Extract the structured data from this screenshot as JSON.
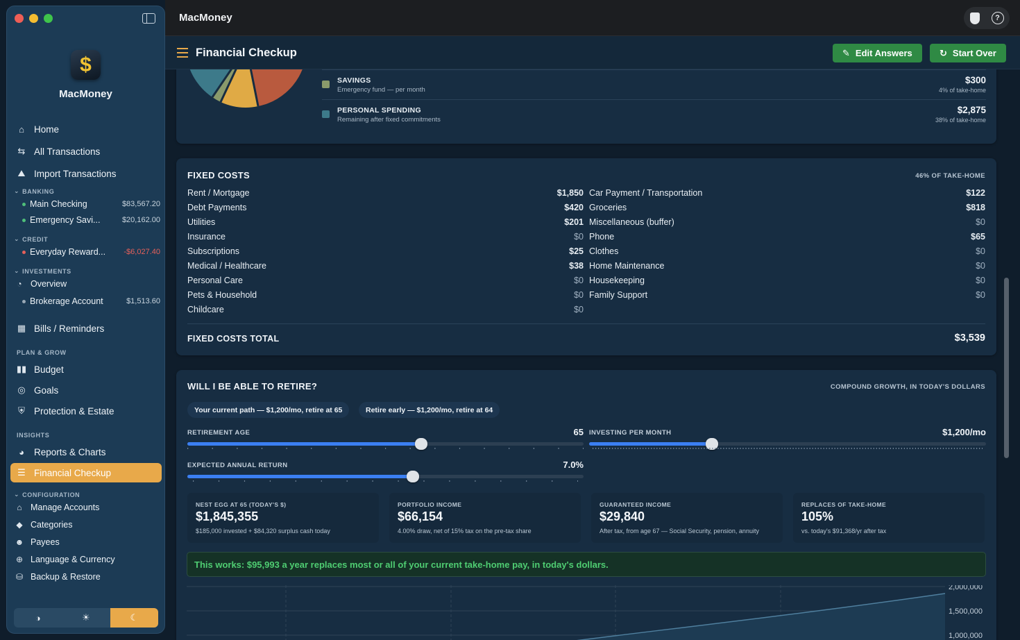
{
  "app": {
    "name": "MacMoney",
    "window_title": "MacMoney"
  },
  "sidebar": {
    "nav_top": [
      {
        "label": "Home",
        "icon": "house-icon"
      },
      {
        "label": "All Transactions",
        "icon": "arrows-swap-icon"
      },
      {
        "label": "Import Transactions",
        "icon": "tray-import-icon"
      }
    ],
    "banking": {
      "label": "BANKING",
      "accounts": [
        {
          "name": "Main Checking",
          "balance": "$83,567.20"
        },
        {
          "name": "Emergency Savi...",
          "balance": "$20,162.00"
        }
      ]
    },
    "credit": {
      "label": "CREDIT",
      "accounts": [
        {
          "name": "Everyday Reward...",
          "balance": "-$6,027.40"
        }
      ]
    },
    "investments": {
      "label": "INVESTMENTS",
      "overview": "Overview",
      "accounts": [
        {
          "name": "Brokerage Account",
          "balance": "$1,513.60"
        }
      ]
    },
    "bills": "Bills / Reminders",
    "plan_grow": {
      "label": "PLAN & GROW",
      "items": [
        "Budget",
        "Goals",
        "Protection & Estate"
      ]
    },
    "insights": {
      "label": "INSIGHTS",
      "items": [
        "Reports & Charts",
        "Financial Checkup"
      ]
    },
    "configuration": {
      "label": "CONFIGURATION",
      "items": [
        "Manage Accounts",
        "Categories",
        "Payees",
        "Language & Currency",
        "Backup & Restore"
      ]
    },
    "theme": {
      "options": [
        "auto",
        "light",
        "dark"
      ],
      "selected": "dark"
    }
  },
  "header": {
    "title": "Financial Checkup",
    "edit_label": "Edit Answers",
    "start_over_label": "Start Over"
  },
  "allocation": {
    "rows": [
      {
        "title": "SAVINGS",
        "subtitle": "Emergency fund — per month",
        "value": "$300",
        "pct": "4% of take-home",
        "color": "#8a9a6b"
      },
      {
        "title": "PERSONAL SPENDING",
        "subtitle": "Remaining after fixed commitments",
        "value": "$2,875",
        "pct": "38% of take-home",
        "color": "#3d7a8a"
      }
    ]
  },
  "fixed_costs": {
    "title": "FIXED COSTS",
    "note": "46% OF TAKE-HOME",
    "left": [
      {
        "label": "Rent / Mortgage",
        "value": "$1,850"
      },
      {
        "label": "Debt Payments",
        "value": "$420"
      },
      {
        "label": "Utilities",
        "value": "$201"
      },
      {
        "label": "Insurance",
        "value": "$0"
      },
      {
        "label": "Subscriptions",
        "value": "$25"
      },
      {
        "label": "Medical / Healthcare",
        "value": "$38"
      },
      {
        "label": "Personal Care",
        "value": "$0"
      },
      {
        "label": "Pets & Household",
        "value": "$0"
      },
      {
        "label": "Childcare",
        "value": "$0"
      }
    ],
    "right": [
      {
        "label": "Car Payment / Transportation",
        "value": "$122"
      },
      {
        "label": "Groceries",
        "value": "$818"
      },
      {
        "label": "Miscellaneous (buffer)",
        "value": "$0"
      },
      {
        "label": "Phone",
        "value": "$65"
      },
      {
        "label": "Clothes",
        "value": "$0"
      },
      {
        "label": "Home Maintenance",
        "value": "$0"
      },
      {
        "label": "Housekeeping",
        "value": "$0"
      },
      {
        "label": "Family Support",
        "value": "$0"
      }
    ],
    "total_label": "FIXED COSTS TOTAL",
    "total_value": "$3,539"
  },
  "retire": {
    "title": "WILL I BE ABLE TO RETIRE?",
    "note": "COMPOUND GROWTH, IN TODAY'S DOLLARS",
    "paths": [
      "Your current path — $1,200/mo, retire at 65",
      "Retire early — $1,200/mo, retire at 64"
    ],
    "sliders": {
      "retirement_age": {
        "label": "RETIREMENT AGE",
        "value": "65",
        "fraction": 0.59
      },
      "investing": {
        "label": "INVESTING PER MONTH",
        "value": "$1,200/mo",
        "fraction": 0.31
      },
      "return": {
        "label": "EXPECTED ANNUAL RETURN",
        "value": "7.0%",
        "fraction": 0.57
      }
    },
    "stats": [
      {
        "label": "NEST EGG AT 65 (TODAY'S $)",
        "value": "$1,845,355",
        "sub": "$185,000 invested + $84,320 surplus cash today"
      },
      {
        "label": "PORTFOLIO INCOME",
        "value": "$66,154",
        "sub": "4.00% draw, net of 15% tax on the pre-tax share"
      },
      {
        "label": "GUARANTEED INCOME",
        "value": "$29,840",
        "sub": "After tax, from age 67 — Social Security, pension, annuity"
      },
      {
        "label": "REPLACES OF TAKE-HOME",
        "value": "105%",
        "sub": "vs. today's $91,368/yr after tax"
      }
    ],
    "verdict": "This works: $95,993 a year replaces most or all of your current take-home pay, in today's dollars."
  },
  "chart_data": {
    "type": "area",
    "title": "",
    "ytick_labels": [
      "2,000,000",
      "1,500,000",
      "1,000,000"
    ],
    "y_visible_range": [
      1000000,
      2000000
    ],
    "series": [
      {
        "values_visible_end": 1845355
      }
    ],
    "grid": true
  },
  "colors": {
    "accent": "#e8a94a",
    "success": "#2f8a44",
    "slider": "#3b7ff2",
    "pie": [
      "#3d7a8a",
      "#8a9a6b",
      "#e0aa45",
      "#b95a3e"
    ]
  }
}
